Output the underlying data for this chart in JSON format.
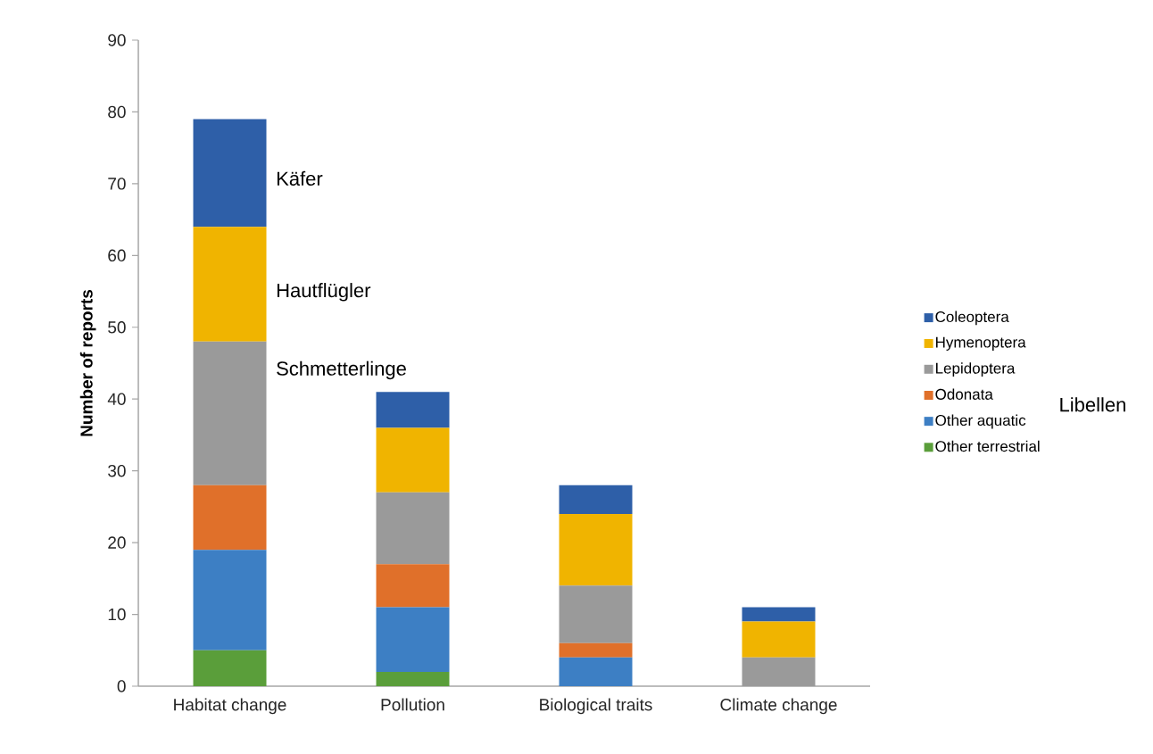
{
  "chart_data": {
    "type": "bar",
    "stacked": true,
    "ylabel": "Number of reports",
    "categories": [
      "Habitat change",
      "Pollution",
      "Biological traits",
      "Climate change"
    ],
    "series": [
      {
        "name": "Other terrestrial",
        "color": "#5a9e3a",
        "values": [
          5,
          2,
          0,
          0
        ]
      },
      {
        "name": "Other aquatic",
        "color": "#3d7fc4",
        "values": [
          14,
          9,
          4,
          0
        ]
      },
      {
        "name": "Odonata",
        "color": "#e0702a",
        "values": [
          9,
          6,
          2,
          0
        ]
      },
      {
        "name": "Lepidoptera",
        "color": "#9a9a9a",
        "values": [
          20,
          10,
          8,
          4
        ]
      },
      {
        "name": "Hymenoptera",
        "color": "#f0b400",
        "values": [
          16,
          9,
          10,
          5
        ]
      },
      {
        "name": "Coleoptera",
        "color": "#2e5fa8",
        "values": [
          15,
          5,
          4,
          2
        ]
      }
    ],
    "ylim": [
      0,
      90
    ],
    "yticks": [
      0,
      10,
      20,
      30,
      40,
      50,
      60,
      70,
      80,
      90
    ],
    "legend": "right",
    "annotations": [
      "Käfer",
      "Hautflügler",
      "Schmetterlinge",
      "Libellen"
    ]
  }
}
